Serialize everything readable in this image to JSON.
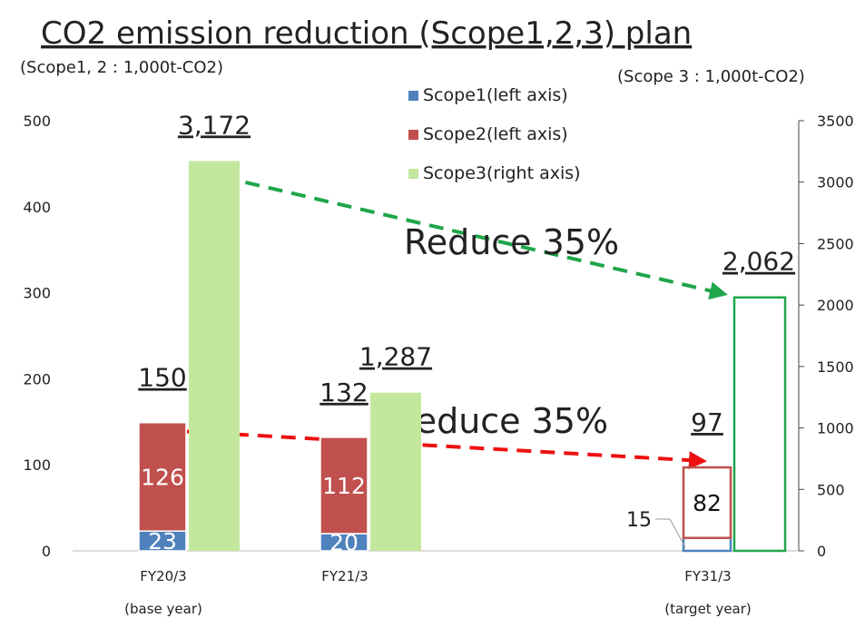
{
  "chart_data": {
    "type": "bar",
    "title": "CO2 emission reduction (Scope1,2,3) plan",
    "y_axis_label": "(Scope1, 2 : 1,000t-CO2)",
    "y2_axis_label": "(Scope 3 : 1,000t-CO2)",
    "categories": [
      "FY20/3",
      "FY21/3",
      "FY31/3"
    ],
    "category_notes": [
      "(base year)",
      null,
      "(target year)"
    ],
    "bar_styles": [
      "filled",
      "filled",
      "outline"
    ],
    "series": [
      {
        "name": "Scope1(left axis)",
        "color": "#4f81bd",
        "axis": "y",
        "values": [
          23,
          20,
          15
        ]
      },
      {
        "name": "Scope2(left axis)",
        "color": "#c0504d",
        "axis": "y",
        "values": [
          126,
          112,
          82
        ]
      },
      {
        "name": "Scope3(right axis)",
        "color": "#c4e79e",
        "outline_color": "#1fa64a",
        "axis": "y2",
        "values": [
          3172,
          1287,
          2062
        ],
        "value_labels": [
          "3,172",
          "1,287",
          "2,062"
        ]
      }
    ],
    "totals": [
      150,
      132,
      97
    ],
    "annotations": [
      "Reduce 35%",
      "Reduce 35%"
    ],
    "ylim": [
      0,
      500
    ],
    "yticks": [
      0,
      100,
      200,
      300,
      400,
      500
    ],
    "y2lim": [
      0,
      3500
    ],
    "y2ticks": [
      0,
      500,
      1000,
      1500,
      2000,
      2500,
      3000,
      3500
    ],
    "legend": "top"
  }
}
